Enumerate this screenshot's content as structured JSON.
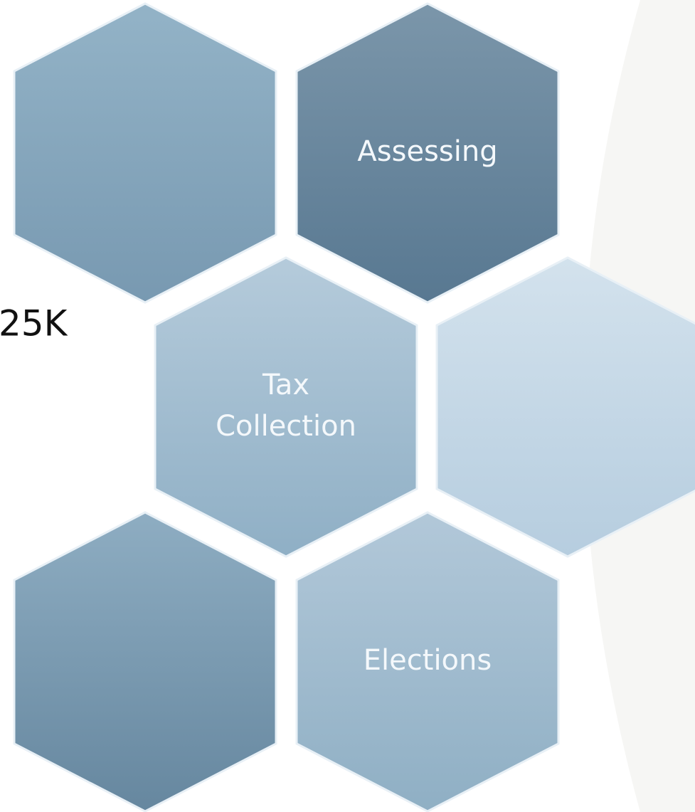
{
  "side_text": "25K",
  "nodes": [
    {
      "lines": [
        "Assessing"
      ]
    },
    {
      "lines": [
        "Tax",
        "Collection"
      ]
    },
    {
      "lines": [
        "Elections"
      ]
    }
  ]
}
